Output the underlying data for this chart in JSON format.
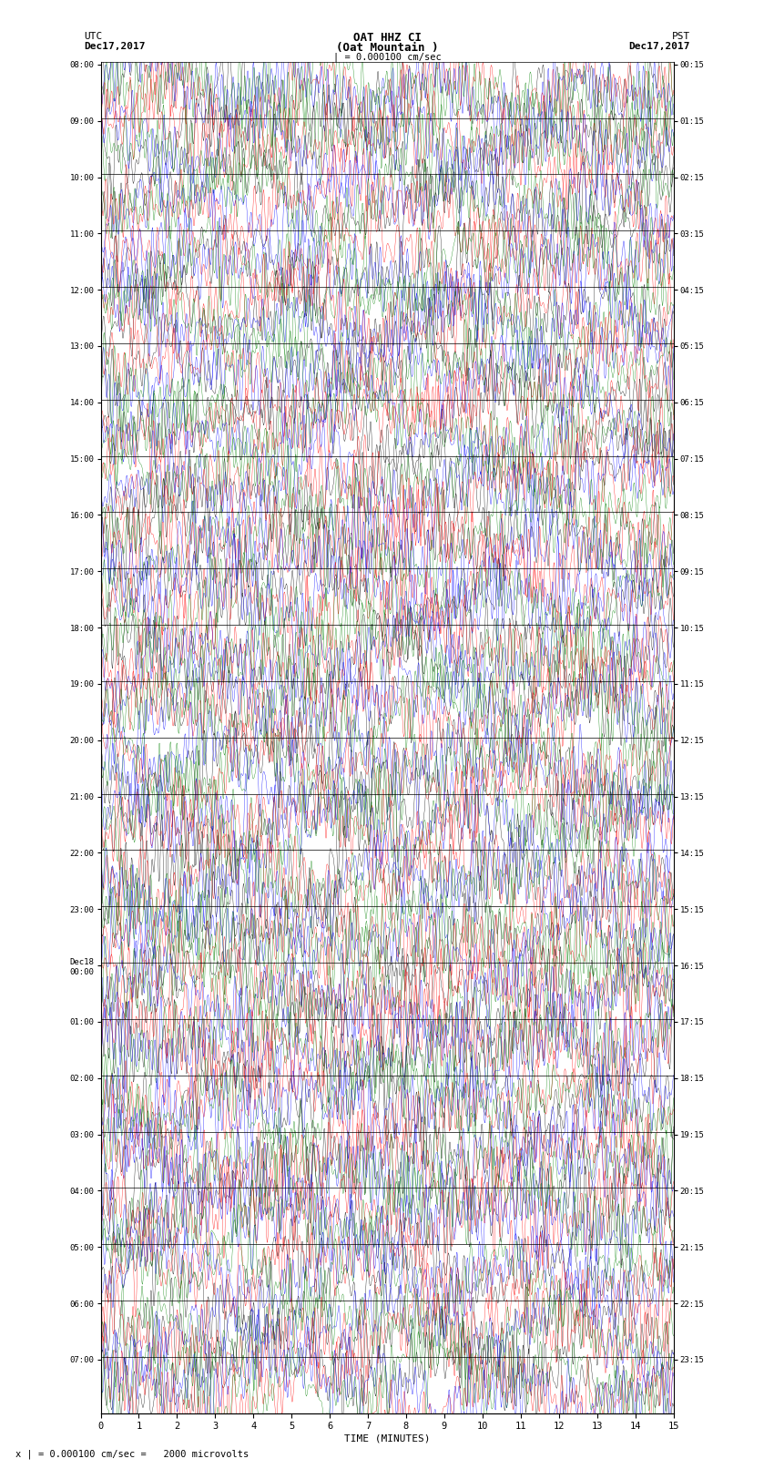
{
  "title_line1": "OAT HHZ CI",
  "title_line2": "(Oat Mountain )",
  "title_line3": "| = 0.000100 cm/sec",
  "utc_label": "UTC",
  "utc_date": "Dec17,2017",
  "pst_label": "PST",
  "pst_date": "Dec17,2017",
  "xlabel": "TIME (MINUTES)",
  "footer": "x | = 0.000100 cm/sec =   2000 microvolts",
  "left_times": [
    "08:00",
    "09:00",
    "10:00",
    "11:00",
    "12:00",
    "13:00",
    "14:00",
    "15:00",
    "16:00",
    "17:00",
    "18:00",
    "19:00",
    "20:00",
    "21:00",
    "22:00",
    "23:00",
    "Dec18\n00:00",
    "01:00",
    "02:00",
    "03:00",
    "04:00",
    "05:00",
    "06:00",
    "07:00"
  ],
  "right_times": [
    "00:15",
    "01:15",
    "02:15",
    "03:15",
    "04:15",
    "05:15",
    "06:15",
    "07:15",
    "08:15",
    "09:15",
    "10:15",
    "11:15",
    "12:15",
    "13:15",
    "14:15",
    "15:15",
    "16:15",
    "17:15",
    "18:15",
    "19:15",
    "20:15",
    "21:15",
    "22:15",
    "23:15"
  ],
  "num_rows": 24,
  "traces_per_row": 4,
  "colors": [
    "black",
    "red",
    "blue",
    "green"
  ],
  "background_color": "white",
  "xmin": 0,
  "xmax": 15,
  "xticks": [
    0,
    1,
    2,
    3,
    4,
    5,
    6,
    7,
    8,
    9,
    10,
    11,
    12,
    13,
    14,
    15
  ],
  "seed": 42
}
